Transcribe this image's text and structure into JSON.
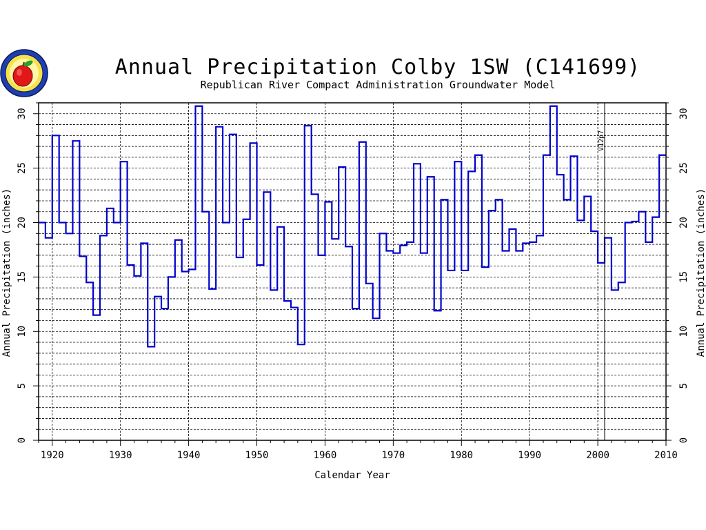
{
  "chart_data": {
    "type": "line",
    "step": true,
    "title": "Annual Precipitation Colby 1SW (C141699)",
    "subtitle": "Republican River Compact Administration Groundwater Model",
    "xlabel": "Calendar Year",
    "ylabel": "Annual Precipitation (inches)",
    "xlim": [
      1918,
      2010
    ],
    "ylim": [
      0,
      31
    ],
    "xticks": [
      "1920",
      "1930",
      "1940",
      "1950",
      "1960",
      "1970",
      "1980",
      "1990",
      "2000",
      "2010"
    ],
    "yticks": [
      "0",
      "5",
      "10",
      "15",
      "20",
      "25",
      "30"
    ],
    "grid": true,
    "series_color": "#0000cc",
    "annotation": {
      "x": 2001,
      "label": "V12p7"
    },
    "x": [
      1918,
      1919,
      1920,
      1921,
      1922,
      1923,
      1924,
      1925,
      1926,
      1927,
      1928,
      1929,
      1930,
      1931,
      1932,
      1933,
      1934,
      1935,
      1936,
      1937,
      1938,
      1939,
      1940,
      1941,
      1942,
      1943,
      1944,
      1945,
      1946,
      1947,
      1948,
      1949,
      1950,
      1951,
      1952,
      1953,
      1954,
      1955,
      1956,
      1957,
      1958,
      1959,
      1960,
      1961,
      1962,
      1963,
      1964,
      1965,
      1966,
      1967,
      1968,
      1969,
      1970,
      1971,
      1972,
      1973,
      1974,
      1975,
      1976,
      1977,
      1978,
      1979,
      1980,
      1981,
      1982,
      1983,
      1984,
      1985,
      1986,
      1987,
      1988,
      1989,
      1990,
      1991,
      1992,
      1993,
      1994,
      1995,
      1996,
      1997,
      1998,
      1999,
      2000,
      2001,
      2002,
      2003,
      2004,
      2005,
      2006,
      2007,
      2008,
      2009
    ],
    "values": [
      20.0,
      18.6,
      28.0,
      20.0,
      19.0,
      27.5,
      16.9,
      14.5,
      11.5,
      18.8,
      21.3,
      20.0,
      25.6,
      16.1,
      15.1,
      18.1,
      8.6,
      13.2,
      12.1,
      15.0,
      18.4,
      15.5,
      15.7,
      30.7,
      21.0,
      13.9,
      28.8,
      20.0,
      28.1,
      16.8,
      20.3,
      27.3,
      16.1,
      22.8,
      13.8,
      19.6,
      12.8,
      12.2,
      8.8,
      28.9,
      22.6,
      17.0,
      21.9,
      18.5,
      25.1,
      17.8,
      12.1,
      27.4,
      14.4,
      11.2,
      19.0,
      17.4,
      17.2,
      17.9,
      18.2,
      25.4,
      17.2,
      24.2,
      11.9,
      22.1,
      15.6,
      25.6,
      15.6,
      24.7,
      26.2,
      15.9,
      21.1,
      22.1,
      17.4,
      19.4,
      17.4,
      18.1,
      18.2,
      18.8,
      26.2,
      30.7,
      24.4,
      22.1,
      26.1,
      20.2,
      22.4,
      19.2,
      16.3,
      18.6,
      13.8,
      14.5,
      20.0,
      20.1,
      21.0,
      18.2,
      20.5,
      26.2
    ]
  }
}
